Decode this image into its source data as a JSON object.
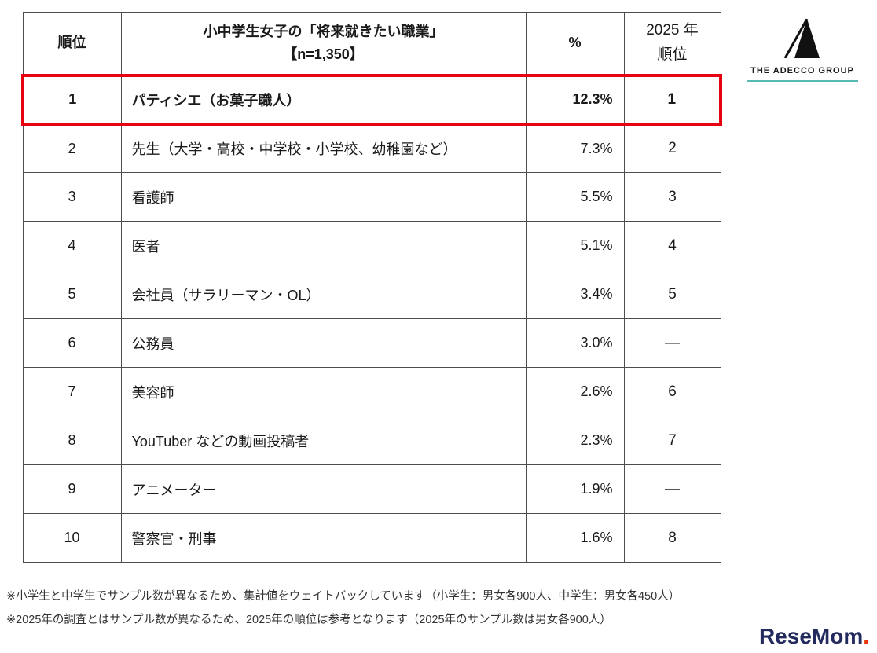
{
  "chart_data": {
    "type": "table",
    "title_line1": "小中学生女子の「将来就きたい職業」",
    "title_line2": "【n=1,350】",
    "columns": [
      "順位",
      "小中学生女子の「将来就きたい職業」【n=1,350】",
      "%",
      "2025年 順位"
    ],
    "rows": [
      {
        "rank": "1",
        "job": "パティシエ（お菓子職人）",
        "percent": "12.3%",
        "rank_2025": "1",
        "highlighted": true
      },
      {
        "rank": "2",
        "job": "先生（大学・高校・中学校・小学校、幼稚園など）",
        "percent": "7.3%",
        "rank_2025": "2",
        "highlighted": false
      },
      {
        "rank": "3",
        "job": "看護師",
        "percent": "5.5%",
        "rank_2025": "3",
        "highlighted": false
      },
      {
        "rank": "4",
        "job": "医者",
        "percent": "5.1%",
        "rank_2025": "4",
        "highlighted": false
      },
      {
        "rank": "5",
        "job": "会社員（サラリーマン・OL）",
        "percent": "3.4%",
        "rank_2025": "5",
        "highlighted": false
      },
      {
        "rank": "6",
        "job": "公務員",
        "percent": "3.0%",
        "rank_2025": "—",
        "highlighted": false
      },
      {
        "rank": "7",
        "job": "美容師",
        "percent": "2.6%",
        "rank_2025": "6",
        "highlighted": false
      },
      {
        "rank": "8",
        "job": "YouTuber などの動画投稿者",
        "percent": "2.3%",
        "rank_2025": "7",
        "highlighted": false
      },
      {
        "rank": "9",
        "job": "アニメーター",
        "percent": "1.9%",
        "rank_2025": "—",
        "highlighted": false
      },
      {
        "rank": "10",
        "job": "警察官・刑事",
        "percent": "1.6%",
        "rank_2025": "8",
        "highlighted": false
      }
    ]
  },
  "header": {
    "rank": "順位",
    "percent": "%",
    "rank2025_line1": "2025 年",
    "rank2025_line2": "順位"
  },
  "notes": [
    "※小学生と中学生でサンプル数が異なるため、集計値をウェイトバックしています（小学生：男女各900人、中学生：男女各450人）",
    "※2025年の調査とはサンプル数が異なるため、2025年の順位は参考となります（2025年のサンプル数は男女各900人）"
  ],
  "logos": {
    "adecco_text": "THE ADECCO GROUP",
    "resemom_text": "ReseMom",
    "resemom_dot": "."
  },
  "colors": {
    "highlight_red": "#e60012",
    "adecco_teal": "#56b9b2",
    "resemom_navy": "#222a5e",
    "table_border": "#4d4d4d"
  }
}
